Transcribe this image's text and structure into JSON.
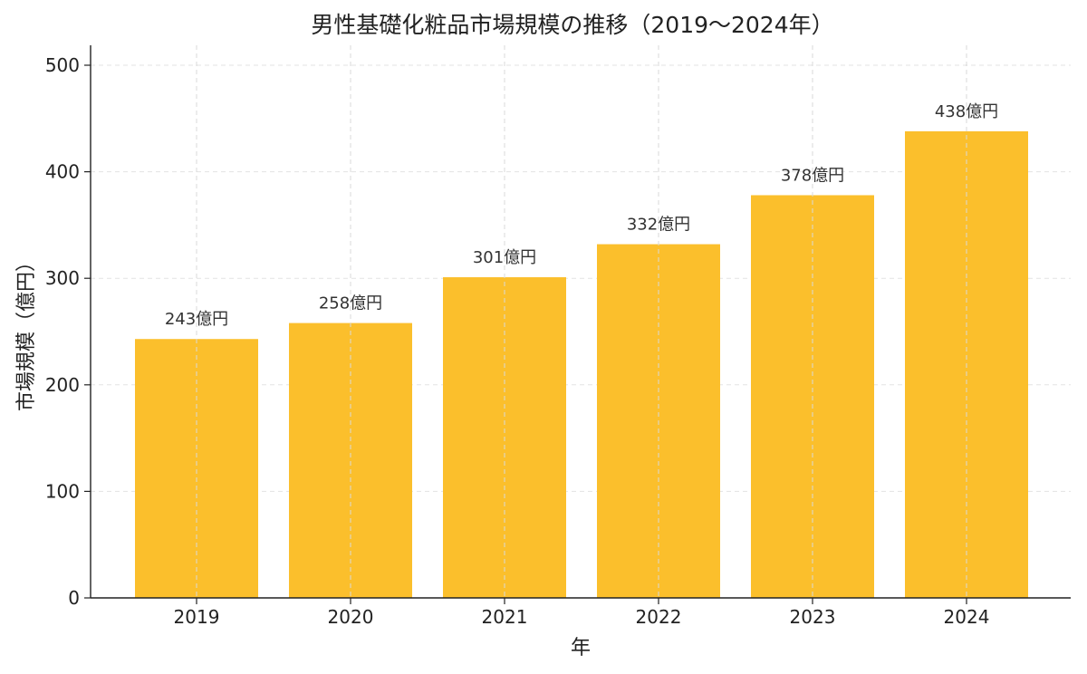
{
  "chart_data": {
    "type": "bar",
    "title": "男性基礎化粧品市場規模の推移（2019〜2024年）",
    "xlabel": "年",
    "ylabel": "市場規模（億円）",
    "categories": [
      "2019",
      "2020",
      "2021",
      "2022",
      "2023",
      "2024"
    ],
    "values": [
      243,
      258,
      301,
      332,
      378,
      438
    ],
    "data_labels": [
      "243億円",
      "258億円",
      "301億円",
      "332億円",
      "378億円",
      "438億円"
    ],
    "yticks": [
      "0",
      "100",
      "200",
      "300",
      "400",
      "500"
    ],
    "ylim": [
      0,
      500
    ],
    "grid": true,
    "bar_color": "#FBBF2C"
  }
}
